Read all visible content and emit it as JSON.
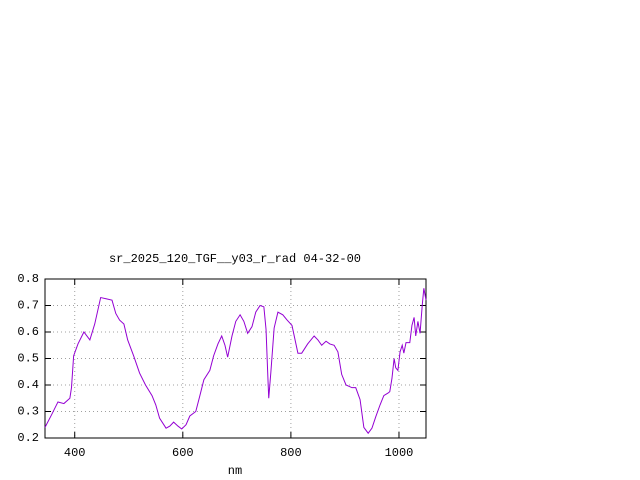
{
  "chart_data": {
    "type": "line",
    "title": "sr_2025_120_TGF__y03_r_rad 04-32-00",
    "x_label": "nm",
    "series": [
      {
        "color": "#9400d3",
        "x": [
          345,
          357,
          369,
          380,
          391,
          394,
          398,
          406,
          417,
          428,
          437,
          448,
          459,
          469,
          476,
          483,
          491,
          498,
          509,
          520,
          531,
          543,
          550,
          557,
          569,
          576,
          583,
          591,
          598,
          606,
          613,
          624,
          631,
          639,
          650,
          657,
          665,
          672,
          678,
          683,
          691,
          698,
          706,
          713,
          720,
          728,
          735,
          743,
          750,
          754,
          757,
          759,
          763,
          769,
          776,
          785,
          793,
          802,
          813,
          820,
          831,
          843,
          850,
          857,
          865,
          872,
          880,
          887,
          894,
          902,
          913,
          920,
          928,
          935,
          943,
          950,
          957,
          965,
          972,
          980,
          983,
          987,
          991,
          994,
          998,
          1002,
          1006,
          1009,
          1013,
          1020,
          1024,
          1028,
          1031,
          1035,
          1039,
          1043,
          1046,
          1050
        ],
        "values": [
          0.24,
          0.287,
          0.336,
          0.33,
          0.35,
          0.39,
          0.51,
          0.555,
          0.6,
          0.57,
          0.63,
          0.73,
          0.725,
          0.72,
          0.67,
          0.645,
          0.63,
          0.57,
          0.51,
          0.445,
          0.4,
          0.36,
          0.325,
          0.275,
          0.237,
          0.245,
          0.26,
          0.245,
          0.234,
          0.25,
          0.283,
          0.3,
          0.355,
          0.42,
          0.455,
          0.51,
          0.555,
          0.585,
          0.55,
          0.505,
          0.585,
          0.64,
          0.665,
          0.64,
          0.595,
          0.62,
          0.675,
          0.7,
          0.695,
          0.61,
          0.45,
          0.35,
          0.45,
          0.615,
          0.675,
          0.665,
          0.645,
          0.625,
          0.52,
          0.52,
          0.555,
          0.585,
          0.57,
          0.55,
          0.565,
          0.555,
          0.55,
          0.525,
          0.44,
          0.4,
          0.39,
          0.39,
          0.345,
          0.24,
          0.218,
          0.237,
          0.28,
          0.325,
          0.36,
          0.37,
          0.375,
          0.425,
          0.5,
          0.465,
          0.455,
          0.525,
          0.55,
          0.52,
          0.56,
          0.56,
          0.625,
          0.655,
          0.585,
          0.64,
          0.595,
          0.7,
          0.765,
          0.72
        ]
      }
    ],
    "xlim": [
      345,
      1050
    ],
    "xticks": [
      400,
      600,
      800,
      1000
    ],
    "ylim": [
      0.2,
      0.8
    ],
    "yticks": [
      0.2,
      0.3,
      0.4,
      0.5,
      0.6,
      0.7,
      0.8
    ],
    "grid": true
  }
}
